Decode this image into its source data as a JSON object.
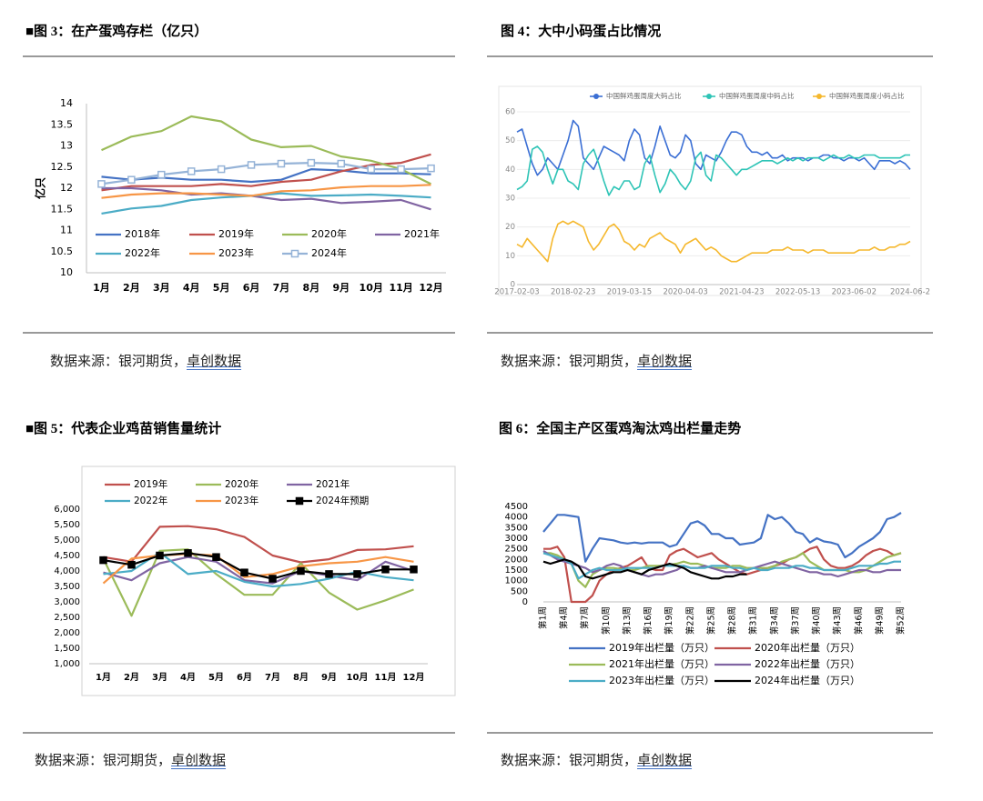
{
  "chart_data": [
    {
      "type": "line",
      "title": "■图 3：在产蛋鸡存栏（亿只）",
      "y_label": "亿只",
      "source": "数据来源：银河期货，",
      "source_link": "卓创数据",
      "categories": [
        "1月",
        "2月",
        "3月",
        "4月",
        "5月",
        "6月",
        "7月",
        "8月",
        "9月",
        "10月",
        "11月",
        "12月"
      ],
      "ylim": [
        10,
        14
      ],
      "yticks": [
        10,
        10.5,
        11,
        11.5,
        12,
        12.5,
        13,
        13.5,
        14
      ],
      "grid": false,
      "series": [
        {
          "name": "2018年",
          "color": "#4472c4",
          "values": [
            12.27,
            12.2,
            12.25,
            12.2,
            12.2,
            12.15,
            12.2,
            12.45,
            12.42,
            12.35,
            12.35,
            12.33
          ]
        },
        {
          "name": "2019年",
          "color": "#c0504d",
          "values": [
            11.95,
            12.05,
            12.05,
            12.05,
            12.1,
            12.05,
            12.15,
            12.2,
            12.4,
            12.55,
            12.6,
            12.8
          ]
        },
        {
          "name": "2020年",
          "color": "#9bbb59",
          "values": [
            12.9,
            13.22,
            13.35,
            13.7,
            13.58,
            13.15,
            12.97,
            13.0,
            12.75,
            12.65,
            12.45,
            12.1
          ]
        },
        {
          "name": "2021年",
          "color": "#8064a2",
          "values": [
            12.0,
            12.0,
            11.95,
            11.85,
            11.88,
            11.82,
            11.72,
            11.75,
            11.65,
            11.68,
            11.72,
            11.5
          ]
        },
        {
          "name": "2022年",
          "color": "#4bacc6",
          "values": [
            11.4,
            11.52,
            11.58,
            11.72,
            11.78,
            11.82,
            11.88,
            11.82,
            11.83,
            11.85,
            11.82,
            11.78
          ]
        },
        {
          "name": "2023年",
          "color": "#f79646",
          "values": [
            11.77,
            11.85,
            11.88,
            11.88,
            11.85,
            11.82,
            11.93,
            11.95,
            12.02,
            12.05,
            12.05,
            12.08
          ]
        },
        {
          "name": "2024年",
          "color": "#95b3d7",
          "marker": "square",
          "values": [
            12.1,
            12.2,
            12.32,
            12.4,
            12.45,
            12.55,
            12.58,
            12.6,
            12.58,
            12.45,
            12.45,
            12.47
          ]
        }
      ]
    },
    {
      "type": "line",
      "title": "图 4：大中小码蛋占比情况",
      "source": "数据来源：银河期货，",
      "source_link": "卓创数据",
      "categories": [
        "2017-02-03",
        null,
        null,
        null,
        null,
        null,
        null,
        null,
        null,
        null,
        null,
        "2018-02-23",
        null,
        null,
        null,
        null,
        null,
        null,
        null,
        null,
        null,
        null,
        "2019-03-15",
        null,
        null,
        null,
        null,
        null,
        null,
        null,
        null,
        null,
        null,
        "2020-04-03",
        null,
        null,
        null,
        null,
        null,
        null,
        null,
        null,
        null,
        null,
        "2021-04-23",
        null,
        null,
        null,
        null,
        null,
        null,
        null,
        null,
        null,
        null,
        "2022-05-13",
        null,
        null,
        null,
        null,
        null,
        null,
        null,
        null,
        null,
        null,
        "2023-06-02",
        null,
        null,
        null,
        null,
        null,
        null,
        null,
        null,
        null,
        null,
        "2024-06-2"
      ],
      "ylim": [
        0,
        60
      ],
      "yticks": [
        0,
        10,
        20,
        30,
        40,
        50,
        60
      ],
      "grid": true,
      "series": [
        {
          "name": "中国鲜鸡蛋周度大码占比",
          "color": "#3b6fd4",
          "values": [
            53,
            54,
            48,
            42,
            38,
            40,
            44,
            42,
            40,
            45,
            50,
            57,
            55,
            44,
            42,
            40,
            44,
            48,
            47,
            46,
            45,
            43,
            50,
            54,
            52,
            44,
            42,
            48,
            55,
            50,
            45,
            44,
            46,
            52,
            50,
            42,
            40,
            45,
            44,
            43,
            46,
            50,
            53,
            53,
            52,
            48,
            46,
            46,
            45,
            46,
            44,
            44,
            45,
            43,
            44,
            44,
            44,
            43,
            44,
            44,
            45,
            45,
            44,
            44,
            43,
            44,
            44,
            43,
            44,
            42,
            40,
            43,
            43,
            43,
            42,
            43,
            42,
            40
          ]
        },
        {
          "name": "中国鲜鸡蛋周度中码占比",
          "color": "#2ec4b6",
          "values": [
            33,
            34,
            36,
            47,
            48,
            46,
            40,
            35,
            40,
            40,
            36,
            35,
            33,
            42,
            45,
            47,
            42,
            36,
            31,
            34,
            33,
            36,
            36,
            33,
            34,
            42,
            45,
            38,
            32,
            35,
            40,
            38,
            35,
            33,
            36,
            44,
            46,
            38,
            36,
            45,
            44,
            42,
            40,
            38,
            40,
            40,
            41,
            42,
            43,
            43,
            43,
            42,
            43,
            44,
            43,
            44,
            43,
            44,
            44,
            44,
            43,
            44,
            45,
            44,
            44,
            45,
            44,
            44,
            45,
            45,
            45,
            44,
            44,
            44,
            44,
            44,
            45,
            45
          ]
        },
        {
          "name": "中国鲜鸡蛋周度小码占比",
          "color": "#f5b82e",
          "values": [
            14,
            13,
            16,
            14,
            12,
            10,
            8,
            16,
            21,
            22,
            21,
            22,
            21,
            20,
            15,
            12,
            14,
            17,
            20,
            21,
            19,
            15,
            14,
            12,
            14,
            13,
            16,
            17,
            18,
            16,
            15,
            14,
            11,
            14,
            15,
            16,
            14,
            12,
            13,
            12,
            10,
            9,
            8,
            8,
            9,
            10,
            11,
            11,
            11,
            11,
            12,
            12,
            12,
            13,
            12,
            12,
            12,
            11,
            12,
            12,
            12,
            11,
            11,
            11,
            11,
            11,
            11,
            12,
            12,
            12,
            13,
            12,
            12,
            13,
            13,
            14,
            14,
            15
          ]
        }
      ]
    },
    {
      "type": "line",
      "title": "■图 5：代表企业鸡苗销售量统计",
      "source": "数据来源：银河期货，",
      "source_link": "卓创数据",
      "categories": [
        "1月",
        "2月",
        "3月",
        "4月",
        "5月",
        "6月",
        "7月",
        "8月",
        "9月",
        "10月",
        "11月",
        "12月"
      ],
      "ylim": [
        1000,
        6000
      ],
      "yticks": [
        {
          "value": 1000,
          "label": "1,000"
        },
        {
          "value": 1500,
          "label": "1,500"
        },
        {
          "value": 2000,
          "label": "2,000"
        },
        {
          "value": 2500,
          "label": "2,500"
        },
        {
          "value": 3000,
          "label": "3,000"
        },
        {
          "value": 3500,
          "label": "3,500"
        },
        {
          "value": 4000,
          "label": "4,000"
        },
        {
          "value": 4500,
          "label": "4,500"
        },
        {
          "value": 5000,
          "label": "5,000"
        },
        {
          "value": 5500,
          "label": "5,500"
        },
        {
          "value": 6000,
          "label": "6,000"
        }
      ],
      "grid": false,
      "series": [
        {
          "name": "2019年",
          "color": "#c0504d",
          "values": [
            4450,
            4300,
            5430,
            5450,
            5350,
            5100,
            4500,
            4280,
            4380,
            4680,
            4700,
            4800
          ]
        },
        {
          "name": "2020年",
          "color": "#9bbb59",
          "values": [
            4400,
            2550,
            4650,
            4700,
            3900,
            3230,
            3230,
            4250,
            3300,
            2750,
            3050,
            3400
          ]
        },
        {
          "name": "2021年",
          "color": "#8064a2",
          "values": [
            3950,
            3700,
            4250,
            4450,
            4300,
            3700,
            3600,
            4000,
            3850,
            3700,
            4300,
            4000
          ]
        },
        {
          "name": "2022年",
          "color": "#4bacc6",
          "values": [
            3900,
            4000,
            4600,
            3900,
            4000,
            3650,
            3500,
            3580,
            3750,
            3980,
            3800,
            3700
          ]
        },
        {
          "name": "2023年",
          "color": "#f79646",
          "values": [
            3600,
            4400,
            4500,
            4550,
            4500,
            3800,
            3900,
            4150,
            4250,
            4300,
            4450,
            4300
          ]
        },
        {
          "name": "2024年预期",
          "color": "#000000",
          "marker": "square",
          "values": [
            4350,
            4200,
            4500,
            4580,
            4450,
            3950,
            3750,
            4000,
            3900,
            3900,
            4050,
            4050
          ]
        }
      ]
    },
    {
      "type": "line",
      "title": "图 6：全国主产区蛋鸡淘汰鸡出栏量走势",
      "source": "数据来源：银河期货，",
      "source_link": "卓创数据",
      "categories": [
        "第1周",
        null,
        null,
        "第4周",
        null,
        null,
        "第7周",
        null,
        null,
        "第10周",
        null,
        null,
        "第13周",
        null,
        null,
        "第16周",
        null,
        null,
        "第19周",
        null,
        null,
        "第22周",
        null,
        null,
        "第25周",
        null,
        null,
        "第28周",
        null,
        null,
        "第31周",
        null,
        null,
        "第34周",
        null,
        null,
        "第37周",
        null,
        null,
        "第40周",
        null,
        null,
        "第43周",
        null,
        null,
        "第46周",
        null,
        null,
        "第49周",
        null,
        null,
        "第52周"
      ],
      "ylim": [
        0,
        4500
      ],
      "yticks": [
        0,
        500,
        1000,
        1500,
        2000,
        2500,
        3000,
        3500,
        4000,
        4500
      ],
      "grid": false,
      "series": [
        {
          "name": "2019年出栏量（万只）",
          "color": "#4472c4",
          "values": [
            3300,
            3700,
            4100,
            4100,
            4050,
            4000,
            1900,
            2500,
            3000,
            2950,
            2900,
            2800,
            2750,
            2800,
            2750,
            2800,
            2800,
            2800,
            2600,
            2700,
            3200,
            3700,
            3800,
            3600,
            3200,
            3200,
            3000,
            3000,
            2700,
            2750,
            2800,
            3000,
            4100,
            3900,
            4000,
            3700,
            3300,
            3200,
            2800,
            3000,
            2850,
            2800,
            2700,
            2100,
            2300,
            2600,
            2800,
            3000,
            3300,
            3900,
            4000,
            4200
          ]
        },
        {
          "name": "2020年出栏量（万只）",
          "color": "#c0504d",
          "values": [
            2500,
            2500,
            2600,
            2100,
            0,
            0,
            0,
            300,
            1000,
            1300,
            1500,
            1600,
            1700,
            1900,
            2100,
            1600,
            1500,
            1500,
            2200,
            2400,
            2500,
            2300,
            2100,
            2200,
            2300,
            2000,
            1800,
            1600,
            1400,
            1300,
            1400,
            1500,
            1600,
            1700,
            1800,
            2000,
            2100,
            2300,
            2500,
            2600,
            2000,
            1700,
            1600,
            1600,
            1700,
            1900,
            2200,
            2400,
            2500,
            2400,
            2200,
            2300
          ]
        },
        {
          "name": "2021年出栏量（万只）",
          "color": "#9bbb59",
          "values": [
            2300,
            2300,
            2200,
            2000,
            1800,
            1000,
            700,
            1300,
            1500,
            1600,
            1600,
            1550,
            1500,
            1500,
            1600,
            1700,
            1700,
            1700,
            1750,
            1800,
            1900,
            1800,
            1800,
            1700,
            1600,
            1600,
            1600,
            1700,
            1700,
            1600,
            1600,
            1600,
            1600,
            1700,
            1900,
            2000,
            2100,
            2300,
            1900,
            1700,
            1500,
            1500,
            1500,
            1500,
            1400,
            1400,
            1500,
            1700,
            1900,
            2100,
            2200,
            2300
          ]
        },
        {
          "name": "2022年出栏量（万只）",
          "color": "#8064a2",
          "values": [
            2400,
            2200,
            2000,
            1900,
            1800,
            1700,
            1600,
            1400,
            1500,
            1700,
            1800,
            1700,
            1500,
            1400,
            1300,
            1200,
            1300,
            1300,
            1400,
            1500,
            1700,
            1600,
            1600,
            1700,
            1600,
            1500,
            1400,
            1400,
            1400,
            1500,
            1600,
            1700,
            1800,
            1900,
            1800,
            1700,
            1600,
            1500,
            1400,
            1400,
            1300,
            1300,
            1200,
            1300,
            1400,
            1500,
            1500,
            1400,
            1400,
            1500,
            1500,
            1500
          ]
        },
        {
          "name": "2023年出栏量（万只）",
          "color": "#4bacc6",
          "values": [
            2300,
            2200,
            2100,
            2000,
            1800,
            1100,
            1300,
            1500,
            1600,
            1500,
            1500,
            1500,
            1600,
            1600,
            1600,
            1600,
            1600,
            1700,
            1700,
            1700,
            1700,
            1600,
            1600,
            1600,
            1700,
            1700,
            1700,
            1600,
            1600,
            1500,
            1600,
            1500,
            1500,
            1600,
            1600,
            1600,
            1700,
            1700,
            1600,
            1600,
            1500,
            1500,
            1500,
            1500,
            1600,
            1700,
            1700,
            1700,
            1800,
            1800,
            1900,
            1900
          ]
        },
        {
          "name": "2024年出栏量（万只）",
          "color": "#000000",
          "values": [
            1900,
            1800,
            1900,
            2000,
            1900,
            1700,
            1200,
            1100,
            1200,
            1300,
            1400,
            1400,
            1500,
            1400,
            1300,
            1500,
            1600,
            1700,
            1800,
            1700,
            1600,
            1400,
            1300,
            1200,
            1100,
            1100,
            1200,
            1200,
            1300,
            1300,
            null,
            null,
            null,
            null,
            null,
            null,
            null,
            null,
            null,
            null,
            null,
            null,
            null,
            null,
            null,
            null,
            null,
            null,
            null,
            null,
            null,
            null
          ]
        }
      ]
    }
  ]
}
